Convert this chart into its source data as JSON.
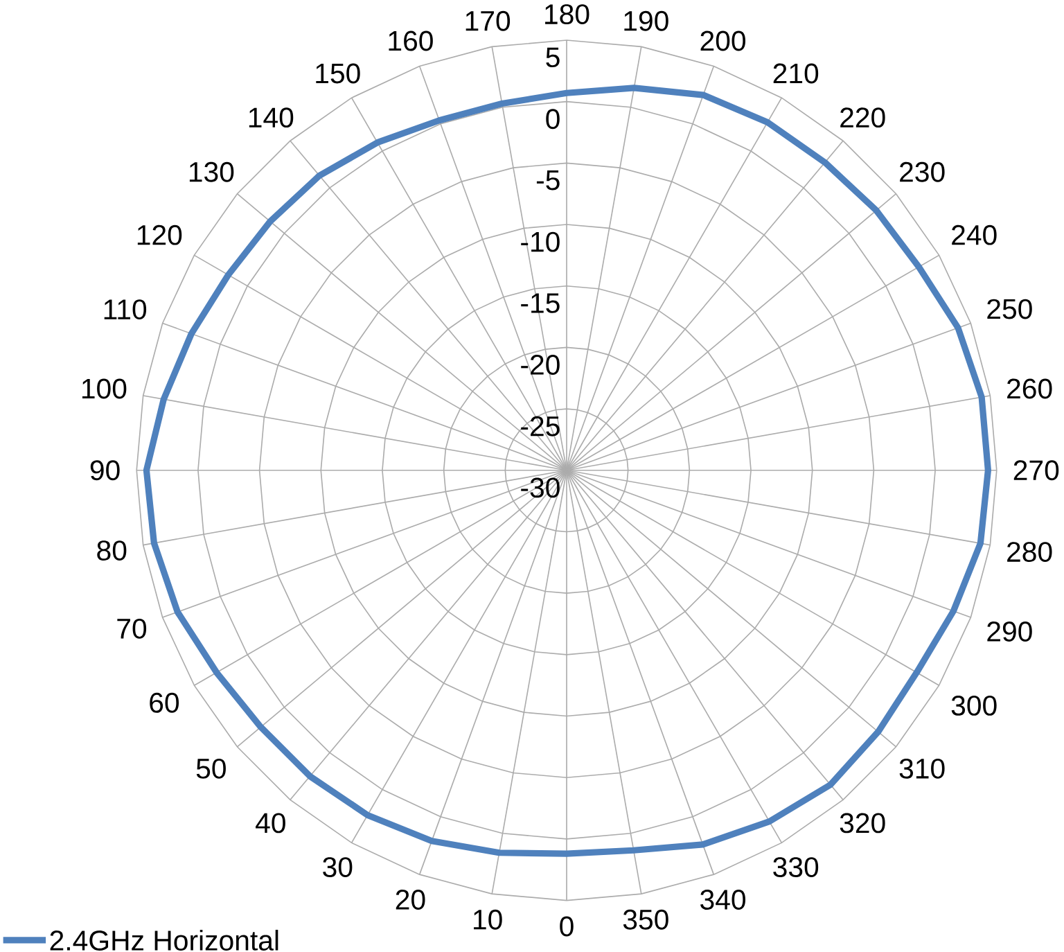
{
  "chart_data": {
    "type": "radar",
    "categories": [
      "180",
      "190",
      "200",
      "210",
      "220",
      "230",
      "240",
      "250",
      "260",
      "270",
      "280",
      "290",
      "300",
      "310",
      "320",
      "330",
      "340",
      "350",
      "0",
      "10",
      "20",
      "30",
      "40",
      "50",
      "60",
      "70",
      "80",
      "90",
      "100",
      "110",
      "120",
      "130",
      "140",
      "150",
      "160",
      "170"
    ],
    "series": [
      {
        "name": "2.4GHz Horizontal",
        "color": "#4f81bd",
        "values": [
          0.7,
          1.6,
          2.5,
          2.7,
          2.7,
          2.9,
          3.1,
          3.9,
          4.3,
          4.3,
          4.2,
          3.5,
          2.9,
          3.1,
          3.4,
          3.0,
          2.4,
          1.4,
          1.2,
          1.6,
          2.1,
          2.4,
          2.5,
          2.5,
          2.9,
          3.7,
          4.1,
          4.2,
          3.3,
          2.5,
          1.8,
          1.5,
          1.3,
          0.8,
          0.3,
          0.3
        ]
      }
    ],
    "ylim": [
      -30,
      5
    ],
    "yticks": [
      -30,
      -25,
      -20,
      -15,
      -10,
      -5,
      0,
      5
    ],
    "grid": true,
    "legend": "bottom left"
  }
}
